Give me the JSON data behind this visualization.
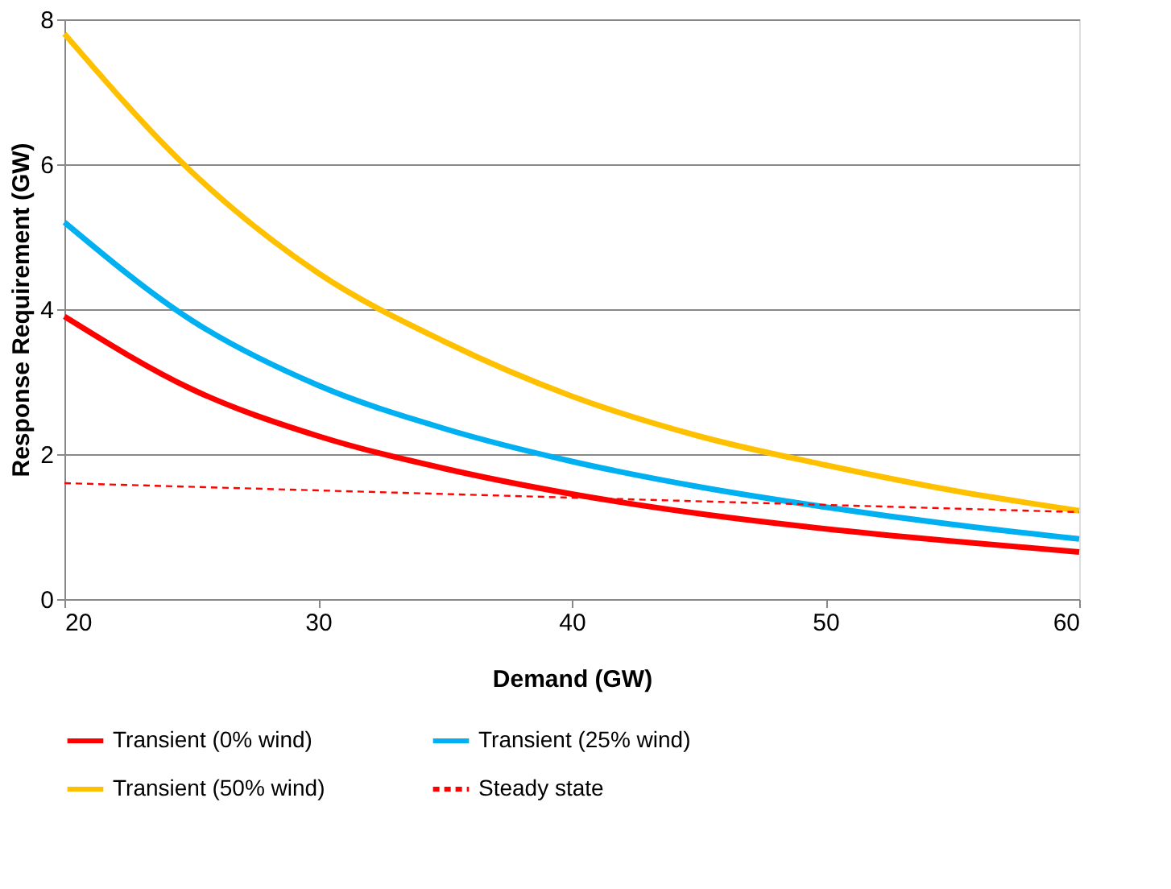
{
  "chart_data": {
    "type": "line",
    "xlabel": "Demand (GW)",
    "ylabel": "Response Requirement (GW)",
    "x": [
      20,
      25,
      30,
      35,
      40,
      45,
      50,
      55,
      60
    ],
    "series": [
      {
        "name": "Transient (0% wind)",
        "color": "#ff0000",
        "values": [
          3.9,
          2.9,
          2.25,
          1.8,
          1.45,
          1.18,
          0.97,
          0.8,
          0.65
        ]
      },
      {
        "name": "Transient (25% wind)",
        "color": "#00b0f0",
        "values": [
          5.2,
          3.85,
          2.95,
          2.35,
          1.9,
          1.55,
          1.27,
          1.03,
          0.83
        ]
      },
      {
        "name": "Transient (50% wind)",
        "color": "#ffc000",
        "values": [
          7.8,
          5.9,
          4.5,
          3.55,
          2.8,
          2.25,
          1.85,
          1.5,
          1.22
        ]
      },
      {
        "name": "Steady state",
        "color": "#ff0000",
        "line_style": "dashed",
        "x": [
          20,
          60
        ],
        "values": [
          1.6,
          1.2
        ]
      }
    ],
    "xlim": [
      20,
      60
    ],
    "xticks": [
      20,
      30,
      40,
      50,
      60
    ],
    "ylim": [
      0,
      8
    ],
    "yticks": [
      0,
      2,
      4,
      6,
      8
    ],
    "grid": "y",
    "legend": "bottom",
    "marker": "none"
  }
}
